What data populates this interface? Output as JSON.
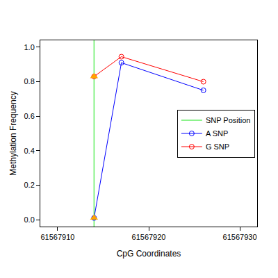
{
  "chart_data": {
    "type": "line",
    "x_label": "CpG Coordinates",
    "y_label": "Methylation Frequency",
    "x": [
      61567914,
      61567917,
      61567926
    ],
    "series": [
      {
        "name": "A SNP",
        "color": "#0000FF",
        "marker": "circle-open",
        "line_style": "solid",
        "values": [
          0.01,
          0.91,
          0.75
        ]
      },
      {
        "name": "G SNP",
        "color": "#FF0000",
        "marker": "circle-open",
        "line_style": "solid",
        "values": [
          0.83,
          0.945,
          0.8
        ]
      },
      {
        "type": "scatter",
        "color": "#FFA500",
        "marker": "triangle-up",
        "x": [
          61567914,
          61567914
        ],
        "values": [
          0.01,
          0.83
        ]
      },
      {
        "name": "SNP Position",
        "type": "vline",
        "color": "#66EE66",
        "line_style": "solid",
        "x": [
          61567914
        ]
      }
    ],
    "xlim": [
      61567908.1,
      61567931.9
    ],
    "xticks": [
      61567910,
      61567920,
      61567930
    ],
    "ylim": [
      -0.04,
      1.04
    ],
    "yticks": [
      {
        "value": 0,
        "label": "0.0"
      },
      0.2,
      0.4,
      0.6,
      0.8,
      {
        "value": 1,
        "label": "1.0"
      }
    ],
    "grid": false,
    "legend": "right"
  }
}
